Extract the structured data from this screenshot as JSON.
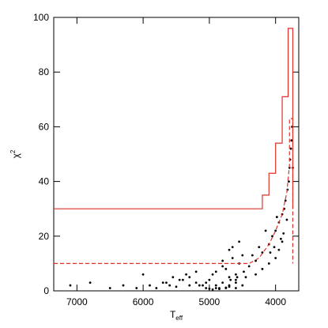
{
  "chart_data": {
    "type": "scatter",
    "xlabel": {
      "main": "T",
      "sub": "eff"
    },
    "ylabel": {
      "main": "χ",
      "sup": "2"
    },
    "xlim": [
      7350,
      3650
    ],
    "ylim": [
      0,
      100
    ],
    "xticks": [
      7000,
      6000,
      5000,
      4000
    ],
    "yticks": [
      0,
      20,
      40,
      60,
      80,
      100
    ],
    "series": [
      {
        "type": "scatter",
        "color": "#000000",
        "x": [
          4800,
          4700,
          4900,
          5000,
          4600,
          4750,
          4850,
          5100,
          4650,
          4550,
          4950,
          5050,
          4700,
          4800,
          4900,
          4600,
          4500,
          4400,
          4300,
          4200,
          4100,
          4050,
          4000,
          3950,
          3900,
          3850,
          3800,
          3780,
          3760,
          3740,
          3900,
          3950,
          4000,
          4100,
          4200,
          4300,
          4450,
          4600,
          4700,
          4750,
          5200,
          5300,
          5400,
          5500,
          5600,
          5700,
          5800,
          5900,
          6100,
          6300,
          6500,
          6800,
          7100,
          5200,
          5300,
          5450,
          5650,
          4800,
          4650,
          4550,
          4350,
          4250,
          4150,
          3980,
          3870,
          3820,
          3790,
          3770,
          3750,
          3830,
          3880,
          3920,
          4020,
          4080,
          4500,
          4600,
          4700,
          4900,
          5000,
          5150,
          5050,
          4950,
          4850,
          4750,
          4680,
          4580,
          4480,
          5350,
          5550,
          6000
        ],
        "y": [
          3,
          5,
          2,
          4,
          6,
          8,
          1,
          2,
          12,
          10,
          6,
          3,
          15,
          9,
          7,
          4,
          13,
          9,
          11,
          14,
          17,
          20,
          22,
          25,
          28,
          33,
          40,
          48,
          55,
          45,
          18,
          15,
          12,
          10,
          8,
          6,
          5,
          3,
          2,
          1,
          3,
          2,
          4,
          1.5,
          2,
          3,
          1,
          2,
          1,
          2,
          1,
          3,
          2,
          7,
          5,
          4,
          3,
          11,
          16,
          18,
          13,
          16,
          22,
          27,
          30,
          37,
          45,
          52,
          60,
          26,
          21,
          19,
          16,
          14,
          2,
          1,
          1.5,
          1,
          0.8,
          2,
          1,
          0.5,
          0.7,
          1.2,
          4,
          5,
          7,
          6,
          5,
          6
        ]
      },
      {
        "type": "line",
        "color": "#e0302a",
        "dashed": false,
        "x": [
          7350,
          4200,
          4200,
          4100,
          4100,
          4000,
          4000,
          3900,
          3900,
          3810,
          3810,
          3740,
          3740,
          3740
        ],
        "y": [
          30,
          30,
          35,
          35,
          43,
          43,
          54,
          54,
          71,
          71,
          96,
          96,
          63,
          30
        ]
      },
      {
        "type": "line",
        "color": "#e0302a",
        "dashed": true,
        "x": [
          7350,
          4400,
          4250,
          4100,
          4000,
          3900,
          3830,
          3790,
          3790,
          3740,
          3740
        ],
        "y": [
          10,
          10,
          12,
          17,
          22,
          28,
          36,
          46,
          63,
          63,
          10
        ]
      }
    ]
  }
}
